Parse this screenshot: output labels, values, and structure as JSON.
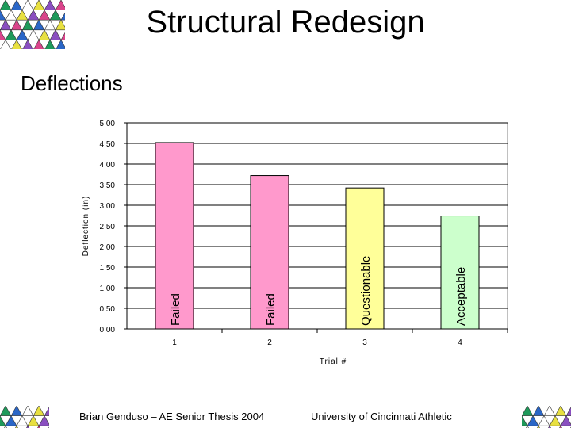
{
  "slide": {
    "title": "Structural Redesign",
    "subtitle": "Deflections",
    "footer_left": "Brian Genduso – AE Senior Thesis 2004",
    "footer_right": "University of Cincinnati Athletic"
  },
  "chart_data": {
    "type": "bar",
    "categories": [
      "1",
      "2",
      "3",
      "4"
    ],
    "values": [
      4.52,
      3.72,
      3.42,
      2.74
    ],
    "bar_labels": [
      "Failed",
      "Failed",
      "Questionable",
      "Acceptable"
    ],
    "bar_colors": [
      "#ff99cc",
      "#ff99cc",
      "#ffff99",
      "#ccffcc"
    ],
    "xlabel": "Trial #",
    "ylabel": "Deflection (in)",
    "ylim": [
      0,
      5
    ],
    "yticks": [
      "0.00",
      "0.50",
      "1.00",
      "1.50",
      "2.00",
      "2.50",
      "3.00",
      "3.50",
      "4.00",
      "4.50",
      "5.00"
    ],
    "grid": true,
    "legend": "none"
  }
}
